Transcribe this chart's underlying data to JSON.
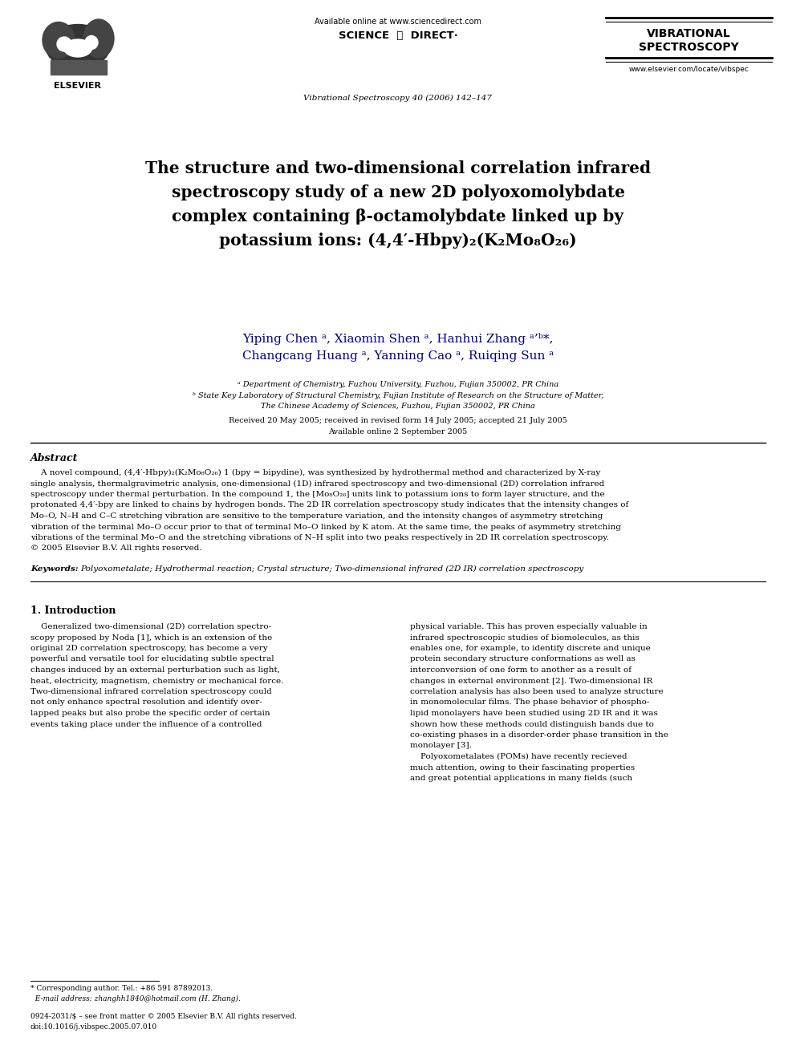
{
  "bg_color": "#ffffff",
  "page_width": 9.92,
  "page_height": 13.23,
  "dpi": 100,
  "header": {
    "available_online": "Available online at www.sciencedirect.com",
    "sciencedirect": "SCIENCE ⓓ DIRECT·",
    "journal_info": "Vibrational Spectroscopy 40 (2006) 142–147",
    "journal_name_line1": "VIBRATIONAL",
    "journal_name_line2": "SPECTROSCOPY",
    "website": "www.elsevier.com/locate/vibspec",
    "elsevier": "ELSEVIER"
  },
  "title_line1": "The structure and two-dimensional correlation infrared",
  "title_line2": "spectroscopy study of a new 2D polyoxomolybdate",
  "title_line3": "complex containing β-octamolybdate linked up by",
  "title_line4": "potassium ions: (4,4′-Hbpy)₂(K₂Mo₈O₂₆)",
  "author_line1": "Yiping Chen ᵃ, Xiaomin Shen ᵃ, Hanhui Zhang ᵃ’ᵇ*,",
  "author_line2": "Changcang Huang ᵃ, Yanning Cao ᵃ, Ruiqing Sun ᵃ",
  "affil_a": "ᵃ Department of Chemistry, Fuzhou University, Fuzhou, Fujian 350002, PR China",
  "affil_b1": "ᵇ State Key Laboratory of Structural Chemistry, Fujian Institute of Research on the Structure of Matter,",
  "affil_b2": "The Chinese Academy of Sciences, Fuzhou, Fujian 350002, PR China",
  "received1": "Received 20 May 2005; received in revised form 14 July 2005; accepted 21 July 2005",
  "received2": "Available online 2 September 2005",
  "abstract_title": "Abstract",
  "abstract_text1": "    A novel compound, (4,4′-Hbpy)₂(K₂Mo₈O₂₆) 1 (bpy = bipydine), was synthesized by hydrothermal method and characterized by X-ray",
  "abstract_text2": "single analysis, thermalgravimetric analysis, one-dimensional (1D) infrared spectroscopy and two-dimensional (2D) correlation infrared",
  "abstract_text3": "spectroscopy under thermal perturbation. In the compound 1, the [Mo₈O₂₆] units link to potassium ions to form layer structure, and the",
  "abstract_text4": "protonated 4,4′-bpy are linked to chains by hydrogen bonds. The 2D IR correlation spectroscopy study indicates that the intensity changes of",
  "abstract_text5": "Mo–O, N–H and C–C stretching vibration are sensitive to the temperature variation, and the intensity changes of asymmetry stretching",
  "abstract_text6": "vibration of the terminal Mo–O occur prior to that of terminal Mo–O linked by K atom. At the same time, the peaks of asymmetry stretching",
  "abstract_text7": "vibrations of the terminal Mo–O and the stretching vibrations of N–H split into two peaks respectively in 2D IR correlation spectroscopy.",
  "abstract_text8": "© 2005 Elsevier B.V. All rights reserved.",
  "keywords_label": "Keywords:",
  "keywords_text": "Polyoxometalate; Hydrothermal reaction; Crystal structure; Two-dimensional infrared (2D IR) correlation spectroscopy",
  "section1_title": "1. Introduction",
  "col1_lines": [
    "    Generalized two-dimensional (2D) correlation spectro-",
    "scopy proposed by Noda [1], which is an extension of the",
    "original 2D correlation spectroscopy, has become a very",
    "powerful and versatile tool for elucidating subtle spectral",
    "changes induced by an external perturbation such as light,",
    "heat, electricity, magnetism, chemistry or mechanical force.",
    "Two-dimensional infrared correlation spectroscopy could",
    "not only enhance spectral resolution and identify over-",
    "lapped peaks but also probe the specific order of certain",
    "events taking place under the influence of a controlled"
  ],
  "col2_lines": [
    "physical variable. This has proven especially valuable in",
    "infrared spectroscopic studies of biomolecules, as this",
    "enables one, for example, to identify discrete and unique",
    "protein secondary structure conformations as well as",
    "interconversion of one form to another as a result of",
    "changes in external environment [2]. Two-dimensional IR",
    "correlation analysis has also been used to analyze structure",
    "in monomolecular films. The phase behavior of phospho-",
    "lipid monolayers have been studied using 2D IR and it was",
    "shown how these methods could distinguish bands due to",
    "co-existing phases in a disorder-order phase transition in the",
    "monolayer [3].",
    "    Polyoxometalates (POMs) have recently recieved",
    "much attention, owing to their fascinating properties",
    "and great potential applications in many fields (such"
  ],
  "footnote1": "* Corresponding author. Tel.: +86 591 87892013.",
  "footnote2": "  E-mail address: zhanghh1840@hotmail.com (H. Zhang).",
  "issn1": "0924-2031/$ – see front matter © 2005 Elsevier B.V. All rights reserved.",
  "issn2": "doi:10.1016/j.vibspec.2005.07.010",
  "author_color": "#00008B",
  "text_color": "#000000"
}
